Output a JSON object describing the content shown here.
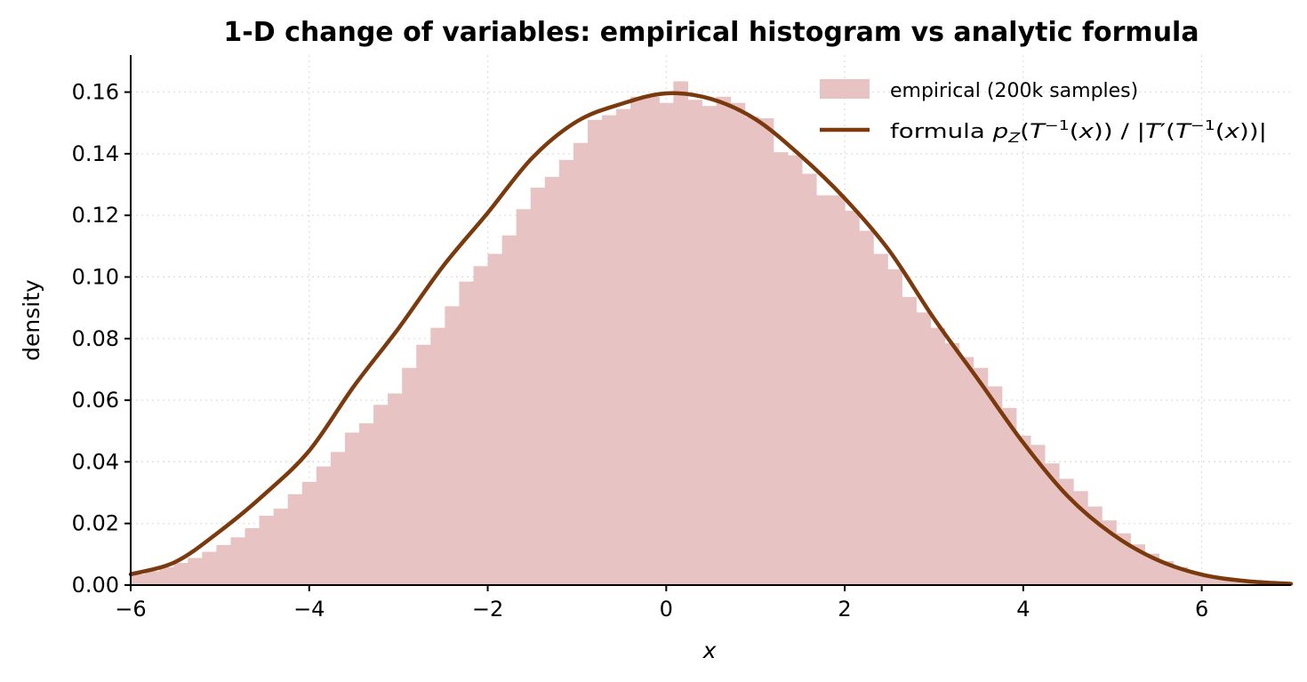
{
  "chart_data": {
    "type": "bar",
    "title": "1-D change of variables: empirical histogram vs analytic formula",
    "xlabel": "x",
    "ylabel": "density",
    "xlim": [
      -6,
      7
    ],
    "ylim": [
      0,
      0.172
    ],
    "grid": true,
    "legend_position": "top-right",
    "x_ticks": [
      -6,
      -4,
      -2,
      0,
      2,
      4,
      6
    ],
    "x_tick_labels": [
      "−6",
      "−4",
      "−2",
      "0",
      "2",
      "4",
      "6"
    ],
    "y_ticks": [
      0.0,
      0.02,
      0.04,
      0.06,
      0.08,
      0.1,
      0.12,
      0.14,
      0.16
    ],
    "y_tick_labels": [
      "0.00",
      "0.02",
      "0.04",
      "0.06",
      "0.08",
      "0.10",
      "0.12",
      "0.14",
      "0.16"
    ],
    "histogram": {
      "name": "empirical (200k samples)",
      "color": "#e8c3c3",
      "bin_edges": [
        -6.0,
        -5.84,
        -5.68,
        -5.52,
        -5.36,
        -5.2,
        -5.04,
        -4.88,
        -4.72,
        -4.56,
        -4.4,
        -4.24,
        -4.08,
        -3.92,
        -3.76,
        -3.6,
        -3.44,
        -3.28,
        -3.12,
        -2.96,
        -2.8,
        -2.64,
        -2.48,
        -2.32,
        -2.16,
        -2.0,
        -1.84,
        -1.68,
        -1.52,
        -1.36,
        -1.2,
        -1.04,
        -0.88,
        -0.72,
        -0.56,
        -0.4,
        -0.24,
        -0.08,
        0.08,
        0.24,
        0.4,
        0.56,
        0.72,
        0.88,
        1.04,
        1.2,
        1.36,
        1.52,
        1.68,
        1.84,
        2.0,
        2.16,
        2.32,
        2.48,
        2.64,
        2.8,
        2.96,
        3.12,
        3.28,
        3.44,
        3.6,
        3.76,
        3.92,
        4.08,
        4.24,
        4.4,
        4.56,
        4.72,
        4.88,
        5.04,
        5.2,
        5.36,
        5.52,
        5.68,
        5.84,
        6.0,
        6.16,
        6.32,
        6.48,
        6.64,
        6.8,
        6.96
      ],
      "values": [
        0.0035,
        0.0045,
        0.0058,
        0.0072,
        0.0088,
        0.0108,
        0.013,
        0.0155,
        0.0185,
        0.0225,
        0.0248,
        0.0295,
        0.0335,
        0.0385,
        0.0432,
        0.0495,
        0.0525,
        0.0585,
        0.0622,
        0.0705,
        0.078,
        0.0835,
        0.0905,
        0.0985,
        0.1035,
        0.1075,
        0.1135,
        0.122,
        0.129,
        0.1325,
        0.138,
        0.1435,
        0.151,
        0.1525,
        0.1545,
        0.1585,
        0.1585,
        0.1565,
        0.1635,
        0.1575,
        0.1555,
        0.1585,
        0.1565,
        0.152,
        0.1515,
        0.1405,
        0.1395,
        0.1335,
        0.1265,
        0.1265,
        0.1215,
        0.115,
        0.1075,
        0.1025,
        0.0935,
        0.0885,
        0.0835,
        0.0785,
        0.074,
        0.0705,
        0.0645,
        0.0575,
        0.0485,
        0.0455,
        0.0395,
        0.0345,
        0.0305,
        0.0255,
        0.021,
        0.0168,
        0.0132,
        0.0102,
        0.0078,
        0.0058,
        0.0042,
        0.003,
        0.0021,
        0.0014,
        0.0009,
        0.0006,
        0.0004
      ]
    },
    "series": [
      {
        "name": "formula p_Z(T⁻¹(x)) / |T′(T⁻¹(x))|",
        "type": "line",
        "color": "#7a3a0e",
        "x": [
          -6.0,
          -5.5,
          -5.0,
          -4.5,
          -4.0,
          -3.5,
          -3.0,
          -2.5,
          -2.0,
          -1.5,
          -1.0,
          -0.5,
          0.0,
          0.5,
          1.0,
          1.5,
          2.0,
          2.5,
          3.0,
          3.5,
          4.0,
          4.5,
          5.0,
          5.5,
          6.0,
          6.5,
          7.0
        ],
        "values": [
          0.0035,
          0.0075,
          0.0175,
          0.0295,
          0.0436,
          0.0645,
          0.0833,
          0.1035,
          0.1208,
          0.1387,
          0.1505,
          0.1562,
          0.1596,
          0.1578,
          0.1512,
          0.1395,
          0.1255,
          0.1085,
          0.0865,
          0.0665,
          0.0462,
          0.0288,
          0.0165,
          0.0082,
          0.0034,
          0.0013,
          0.0004
        ]
      }
    ]
  }
}
